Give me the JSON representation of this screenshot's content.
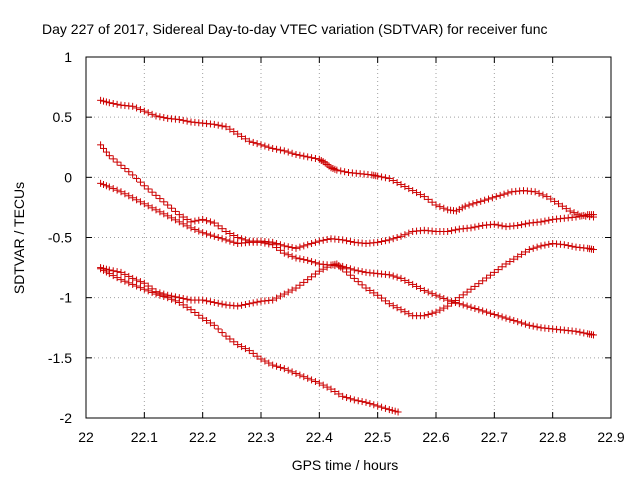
{
  "chart_data": {
    "type": "scatter",
    "title": "Day 227 of 2017, Sidereal Day-to-day VTEC variation (SDTVAR) for receiver func",
    "xlabel": "GPS time / hours",
    "ylabel": "SDTVAR / TECUs",
    "xlim": [
      22,
      22.9
    ],
    "ylim": [
      -2,
      1
    ],
    "xticks": [
      "22",
      "22.1",
      "22.2",
      "22.3",
      "22.4",
      "22.5",
      "22.6",
      "22.7",
      "22.8",
      "22.9"
    ],
    "yticks": [
      "1",
      "0.5",
      "0",
      "-0.5",
      "-1",
      "-1.5",
      "-2"
    ],
    "grid": true,
    "marker": "+",
    "marker_color": "#cc0000",
    "series": [
      {
        "name": "series-1",
        "points": [
          [
            22.025,
            0.64
          ],
          [
            22.04,
            0.62
          ],
          [
            22.06,
            0.6
          ],
          [
            22.08,
            0.59
          ],
          [
            22.1,
            0.55
          ],
          [
            22.12,
            0.51
          ],
          [
            22.14,
            0.49
          ],
          [
            22.16,
            0.48
          ],
          [
            22.18,
            0.46
          ],
          [
            22.2,
            0.45
          ],
          [
            22.22,
            0.44
          ],
          [
            22.24,
            0.42
          ],
          [
            22.26,
            0.36
          ],
          [
            22.28,
            0.3
          ],
          [
            22.3,
            0.27
          ],
          [
            22.32,
            0.24
          ],
          [
            22.34,
            0.22
          ],
          [
            22.36,
            0.19
          ],
          [
            22.38,
            0.17
          ],
          [
            22.4,
            0.15
          ],
          [
            22.41,
            0.12
          ],
          [
            22.42,
            0.08
          ],
          [
            22.43,
            0.06
          ],
          [
            22.45,
            0.04
          ],
          [
            22.47,
            0.03
          ],
          [
            22.49,
            0.02
          ],
          [
            22.5,
            0.01
          ],
          [
            22.52,
            -0.01
          ],
          [
            22.54,
            -0.06
          ],
          [
            22.56,
            -0.11
          ],
          [
            22.58,
            -0.16
          ],
          [
            22.6,
            -0.23
          ],
          [
            22.62,
            -0.27
          ],
          [
            22.635,
            -0.28
          ],
          [
            22.65,
            -0.24
          ],
          [
            22.67,
            -0.21
          ],
          [
            22.69,
            -0.18
          ],
          [
            22.71,
            -0.15
          ],
          [
            22.73,
            -0.12
          ],
          [
            22.75,
            -0.11
          ],
          [
            22.77,
            -0.12
          ],
          [
            22.79,
            -0.16
          ],
          [
            22.81,
            -0.22
          ],
          [
            22.83,
            -0.28
          ],
          [
            22.85,
            -0.32
          ],
          [
            22.87,
            -0.33
          ]
        ]
      },
      {
        "name": "series-2",
        "points": [
          [
            22.025,
            0.27
          ],
          [
            22.04,
            0.18
          ],
          [
            22.06,
            0.1
          ],
          [
            22.08,
            0.02
          ],
          [
            22.1,
            -0.07
          ],
          [
            22.12,
            -0.15
          ],
          [
            22.14,
            -0.23
          ],
          [
            22.16,
            -0.31
          ],
          [
            22.18,
            -0.37
          ],
          [
            22.2,
            -0.35
          ],
          [
            22.22,
            -0.38
          ],
          [
            22.24,
            -0.45
          ],
          [
            22.26,
            -0.5
          ],
          [
            22.28,
            -0.53
          ],
          [
            22.3,
            -0.53
          ],
          [
            22.32,
            -0.54
          ],
          [
            22.34,
            -0.57
          ],
          [
            22.36,
            -0.59
          ],
          [
            22.38,
            -0.56
          ],
          [
            22.4,
            -0.53
          ],
          [
            22.42,
            -0.51
          ],
          [
            22.44,
            -0.52
          ],
          [
            22.46,
            -0.54
          ],
          [
            22.48,
            -0.55
          ],
          [
            22.5,
            -0.54
          ],
          [
            22.52,
            -0.52
          ],
          [
            22.54,
            -0.49
          ],
          [
            22.56,
            -0.45
          ],
          [
            22.58,
            -0.44
          ],
          [
            22.6,
            -0.45
          ],
          [
            22.62,
            -0.45
          ],
          [
            22.64,
            -0.43
          ],
          [
            22.66,
            -0.42
          ],
          [
            22.68,
            -0.4
          ],
          [
            22.7,
            -0.39
          ],
          [
            22.72,
            -0.41
          ],
          [
            22.74,
            -0.4
          ],
          [
            22.76,
            -0.38
          ],
          [
            22.78,
            -0.37
          ],
          [
            22.8,
            -0.35
          ],
          [
            22.82,
            -0.34
          ],
          [
            22.84,
            -0.33
          ],
          [
            22.86,
            -0.31
          ],
          [
            22.87,
            -0.31
          ]
        ]
      },
      {
        "name": "series-3",
        "points": [
          [
            22.025,
            -0.05
          ],
          [
            22.04,
            -0.08
          ],
          [
            22.06,
            -0.12
          ],
          [
            22.08,
            -0.17
          ],
          [
            22.1,
            -0.22
          ],
          [
            22.12,
            -0.27
          ],
          [
            22.14,
            -0.32
          ],
          [
            22.16,
            -0.37
          ],
          [
            22.18,
            -0.42
          ],
          [
            22.2,
            -0.46
          ],
          [
            22.22,
            -0.49
          ],
          [
            22.24,
            -0.52
          ],
          [
            22.26,
            -0.55
          ],
          [
            22.28,
            -0.54
          ],
          [
            22.3,
            -0.54
          ],
          [
            22.32,
            -0.56
          ],
          [
            22.34,
            -0.63
          ],
          [
            22.36,
            -0.67
          ],
          [
            22.38,
            -0.69
          ],
          [
            22.4,
            -0.72
          ],
          [
            22.42,
            -0.73
          ],
          [
            22.44,
            -0.74
          ],
          [
            22.46,
            -0.77
          ],
          [
            22.48,
            -0.79
          ],
          [
            22.5,
            -0.8
          ],
          [
            22.52,
            -0.81
          ],
          [
            22.54,
            -0.84
          ],
          [
            22.56,
            -0.89
          ],
          [
            22.58,
            -0.94
          ],
          [
            22.6,
            -0.98
          ],
          [
            22.62,
            -1.02
          ],
          [
            22.64,
            -1.05
          ],
          [
            22.66,
            -1.08
          ],
          [
            22.68,
            -1.11
          ],
          [
            22.7,
            -1.14
          ],
          [
            22.72,
            -1.17
          ],
          [
            22.74,
            -1.2
          ],
          [
            22.76,
            -1.23
          ],
          [
            22.78,
            -1.25
          ],
          [
            22.8,
            -1.26
          ],
          [
            22.82,
            -1.27
          ],
          [
            22.84,
            -1.28
          ],
          [
            22.86,
            -1.3
          ],
          [
            22.87,
            -1.31
          ]
        ]
      },
      {
        "name": "series-4",
        "points": [
          [
            22.025,
            -0.75
          ],
          [
            22.04,
            -0.77
          ],
          [
            22.06,
            -0.79
          ],
          [
            22.08,
            -0.84
          ],
          [
            22.1,
            -0.88
          ],
          [
            22.12,
            -0.95
          ],
          [
            22.14,
            -0.98
          ],
          [
            22.16,
            -1.0
          ],
          [
            22.18,
            -1.02
          ],
          [
            22.2,
            -1.02
          ],
          [
            22.22,
            -1.04
          ],
          [
            22.24,
            -1.06
          ],
          [
            22.26,
            -1.07
          ],
          [
            22.28,
            -1.05
          ],
          [
            22.3,
            -1.03
          ],
          [
            22.32,
            -1.02
          ],
          [
            22.34,
            -0.97
          ],
          [
            22.36,
            -0.92
          ],
          [
            22.38,
            -0.85
          ],
          [
            22.4,
            -0.78
          ],
          [
            22.42,
            -0.73
          ],
          [
            22.43,
            -0.72
          ],
          [
            22.44,
            -0.76
          ],
          [
            22.46,
            -0.84
          ],
          [
            22.48,
            -0.92
          ],
          [
            22.5,
            -0.98
          ],
          [
            22.52,
            -1.05
          ],
          [
            22.54,
            -1.1
          ],
          [
            22.56,
            -1.15
          ],
          [
            22.58,
            -1.15
          ],
          [
            22.6,
            -1.12
          ],
          [
            22.62,
            -1.07
          ],
          [
            22.64,
            -1.0
          ],
          [
            22.66,
            -0.93
          ],
          [
            22.68,
            -0.86
          ],
          [
            22.7,
            -0.79
          ],
          [
            22.72,
            -0.72
          ],
          [
            22.74,
            -0.66
          ],
          [
            22.76,
            -0.6
          ],
          [
            22.78,
            -0.57
          ],
          [
            22.8,
            -0.55
          ],
          [
            22.82,
            -0.56
          ],
          [
            22.84,
            -0.58
          ],
          [
            22.86,
            -0.59
          ],
          [
            22.87,
            -0.6
          ]
        ]
      },
      {
        "name": "series-5",
        "points": [
          [
            22.025,
            -0.76
          ],
          [
            22.04,
            -0.8
          ],
          [
            22.06,
            -0.85
          ],
          [
            22.08,
            -0.89
          ],
          [
            22.1,
            -0.93
          ],
          [
            22.12,
            -0.97
          ],
          [
            22.14,
            -1.0
          ],
          [
            22.16,
            -1.04
          ],
          [
            22.18,
            -1.1
          ],
          [
            22.2,
            -1.17
          ],
          [
            22.22,
            -1.23
          ],
          [
            22.24,
            -1.32
          ],
          [
            22.26,
            -1.39
          ],
          [
            22.28,
            -1.44
          ],
          [
            22.3,
            -1.51
          ],
          [
            22.32,
            -1.56
          ],
          [
            22.34,
            -1.59
          ],
          [
            22.36,
            -1.63
          ],
          [
            22.38,
            -1.67
          ],
          [
            22.4,
            -1.71
          ],
          [
            22.42,
            -1.76
          ],
          [
            22.44,
            -1.82
          ],
          [
            22.46,
            -1.85
          ],
          [
            22.48,
            -1.87
          ],
          [
            22.5,
            -1.9
          ],
          [
            22.52,
            -1.93
          ],
          [
            22.535,
            -1.95
          ]
        ]
      }
    ]
  }
}
